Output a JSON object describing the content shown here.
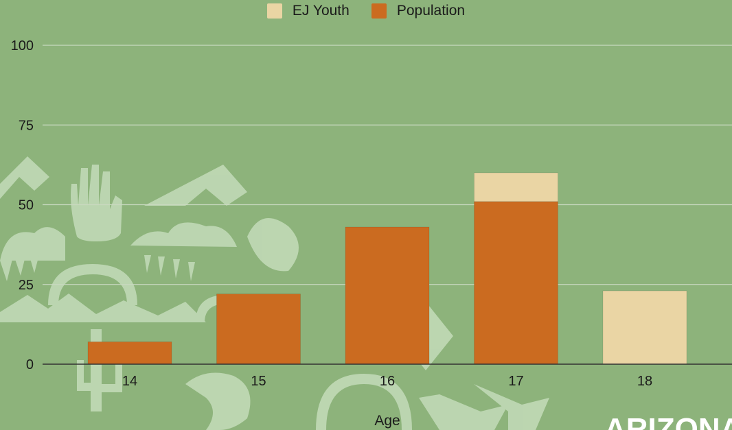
{
  "colors": {
    "background": "#8db37b",
    "ej_youth": "#ead5a4",
    "population": "#cb6b20",
    "gridline": "#c9d9c0",
    "axis": "#333333",
    "decor": "#c4dcba"
  },
  "legend": {
    "placement": "top-center",
    "items": [
      {
        "label": "EJ Youth",
        "color": "#ead5a4"
      },
      {
        "label": "Population",
        "color": "#cb6b20"
      }
    ]
  },
  "chart_data": {
    "type": "bar",
    "stacked": true,
    "categories": [
      "14",
      "15",
      "16",
      "17",
      "18"
    ],
    "series": [
      {
        "name": "Population",
        "values": [
          7,
          22,
          43,
          51,
          0
        ]
      },
      {
        "name": "EJ Youth",
        "values": [
          0,
          0,
          0,
          9,
          23
        ]
      }
    ],
    "title": "",
    "xlabel": "Age",
    "ylabel": "",
    "ylim": [
      0,
      100
    ],
    "yticks": [
      0,
      25,
      50,
      75,
      100
    ],
    "grid": true,
    "legend_placement": "top-center"
  },
  "watermark": {
    "text": "ARIZONA"
  }
}
